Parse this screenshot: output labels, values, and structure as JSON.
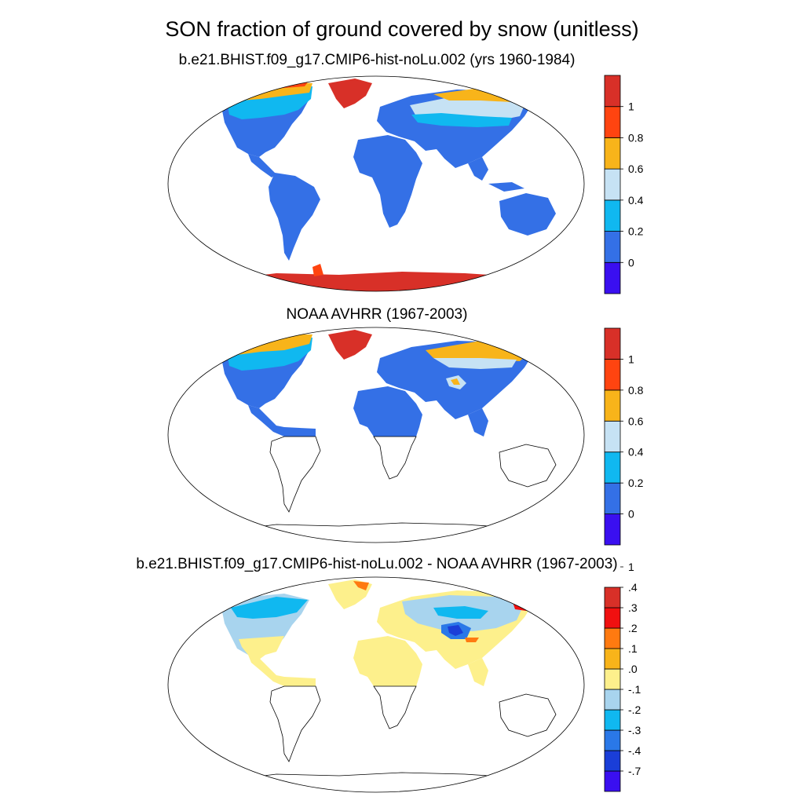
{
  "title": "SON fraction of ground covered by snow (unitless)",
  "panels": [
    {
      "title": "b.e21.BHIST.f09_g17.CMIP6-hist-noLu.002 (yrs 1960-1984)",
      "colorbar": {
        "colors": [
          "#3a0ff0",
          "#3470e6",
          "#10b8f0",
          "#c6e2f4",
          "#f8b41a",
          "#ff4410",
          "#d83028"
        ],
        "labels": [
          "0",
          "0.2",
          "0.4",
          "0.6",
          "0.8",
          "1"
        ]
      }
    },
    {
      "title": "NOAA AVHRR (1967-2003)",
      "colorbar": {
        "colors": [
          "#3a0ff0",
          "#3470e6",
          "#10b8f0",
          "#c6e2f4",
          "#f8b41a",
          "#ff4410",
          "#d83028"
        ],
        "labels": [
          "0",
          "0.2",
          "0.4",
          "0.6",
          "0.8",
          "1"
        ]
      }
    },
    {
      "title": "b.e21.BHIST.f09_g17.CMIP6-hist-noLu.002 - NOAA AVHRR (1967-2003)",
      "colorbar": {
        "colors": [
          "#3a0ff0",
          "#1a3ed8",
          "#2a78e8",
          "#10b8f0",
          "#a8d4ee",
          "#fdf08c",
          "#f8b41a",
          "#ff7a10",
          "#f01010",
          "#d83028"
        ],
        "labels": [
          "-.7",
          "-.4",
          "-.3",
          "-.2",
          "-.1",
          ".0",
          ".1",
          ".2",
          ".3",
          ".4",
          "1"
        ]
      }
    }
  ]
}
